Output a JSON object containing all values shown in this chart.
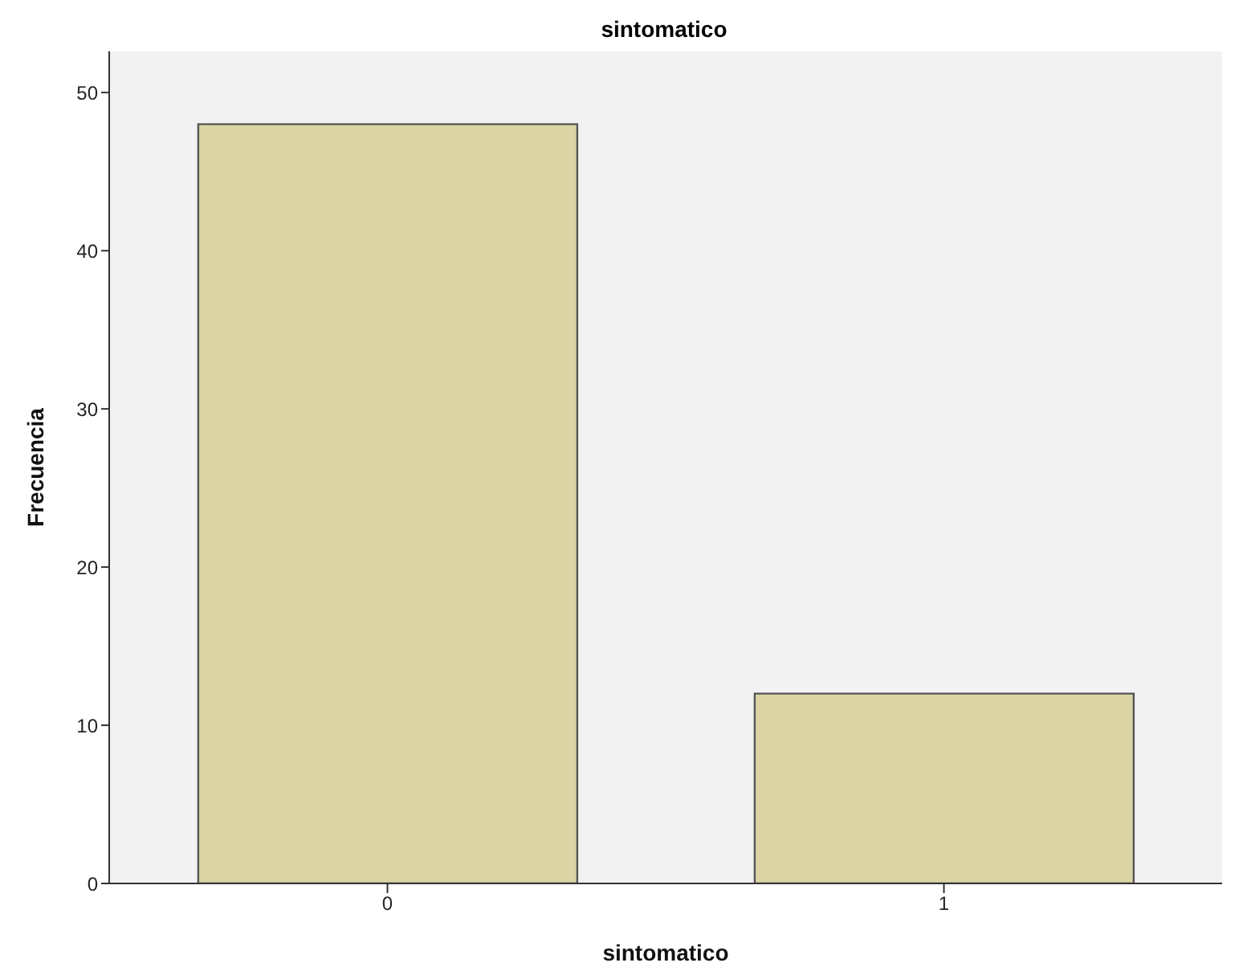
{
  "chart_data": {
    "type": "bar",
    "title": "sintomatico",
    "xlabel": "sintomatico",
    "ylabel": "Frecuencia",
    "categories": [
      "0",
      "1"
    ],
    "values": [
      48,
      12
    ],
    "color": "#dbd4a5",
    "ylim": [
      0,
      52.6
    ],
    "yticks": [
      0,
      10,
      20,
      30,
      40,
      50
    ]
  }
}
